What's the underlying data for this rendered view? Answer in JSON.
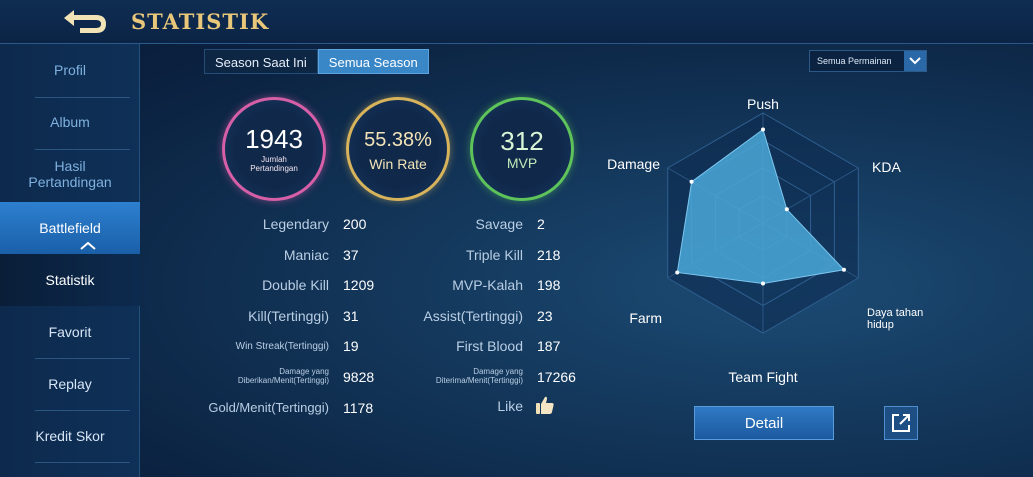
{
  "header": {
    "title": "STATISTIK",
    "back_icon": "back-arrow-icon"
  },
  "sidebar": {
    "items": [
      {
        "label": "Profil"
      },
      {
        "label": "Album"
      },
      {
        "label": "Hasil Pertandingan"
      },
      {
        "label": "Battlefield"
      },
      {
        "label": "Statistik"
      },
      {
        "label": "Favorit"
      },
      {
        "label": "Replay"
      },
      {
        "label": "Kredit Skor"
      }
    ],
    "active": "Statistik"
  },
  "tabs": [
    {
      "label": "Season Saat Ini",
      "active": false
    },
    {
      "label": "Semua Season",
      "active": true
    }
  ],
  "filter": {
    "selected": "Semua Permainan"
  },
  "summary": {
    "matches": {
      "value": "1943",
      "label": "Jumlah Pertandingan",
      "color": "#d65fa7"
    },
    "winrate": {
      "value": "55.38%",
      "label": "Win Rate",
      "color": "#d7b35c"
    },
    "mvp": {
      "value": "312",
      "label": "MVP",
      "color": "#5ec35a"
    }
  },
  "stats_left": [
    {
      "label": "Legendary",
      "value": "200"
    },
    {
      "label": "Maniac",
      "value": "37"
    },
    {
      "label": "Double Kill",
      "value": "1209"
    },
    {
      "label": "Kill(Tertinggi)",
      "value": "31"
    },
    {
      "label": "Win Streak(Tertinggi)",
      "value": "19"
    },
    {
      "label": "Damage yang Diberikan/Menit(Tertinggi)",
      "value": "9828"
    },
    {
      "label": "Gold/Menit(Tertinggi)",
      "value": "1178"
    }
  ],
  "stats_right": [
    {
      "label": "Savage",
      "value": "2"
    },
    {
      "label": "Triple Kill",
      "value": "218"
    },
    {
      "label": "MVP-Kalah",
      "value": "198"
    },
    {
      "label": "Assist(Tertinggi)",
      "value": "23"
    },
    {
      "label": "First Blood",
      "value": "187"
    },
    {
      "label": "Damage yang Diterima/Menit(Tertinggi)",
      "value": "17266"
    },
    {
      "label": "Like",
      "value": ""
    }
  ],
  "radar": {
    "axes": [
      "Push",
      "KDA",
      "Daya tahan hidup",
      "Team Fight",
      "Farm",
      "Damage"
    ],
    "levels": [
      0.85,
      0.25,
      0.85,
      0.55,
      0.9,
      0.75
    ],
    "fill_color": "#4aa8d8"
  },
  "buttons": {
    "detail": "Detail",
    "share_icon": "share-icon"
  }
}
